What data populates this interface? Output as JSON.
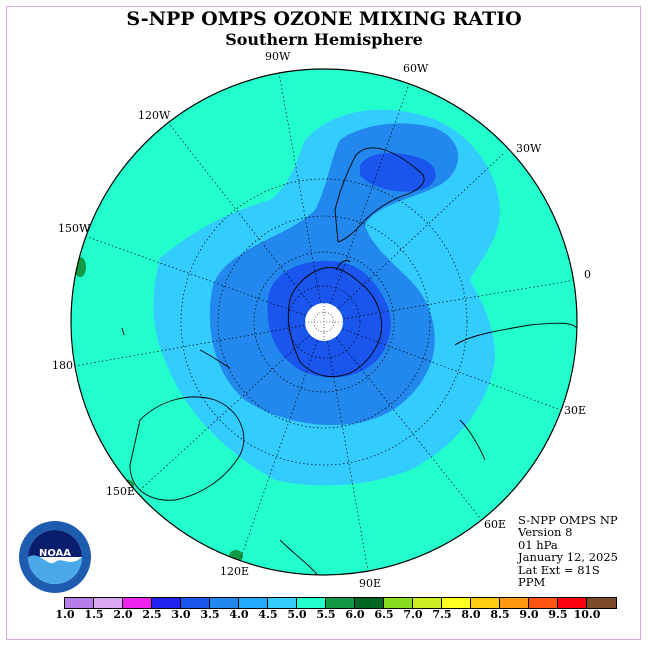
{
  "title": "S-NPP OMPS OZONE MIXING RATIO",
  "subtitle": "Southern Hemisphere",
  "longitude_labels": [
    "90W",
    "60W",
    "120W",
    "30W",
    "150W",
    "0",
    "180",
    "30E",
    "150E",
    "60E",
    "120E",
    "90E"
  ],
  "info": {
    "instrument": "S-NPP OMPS NP",
    "version": "Version 8",
    "level": "01 hPa",
    "date": "January 12, 2025",
    "lat_ext": "Lat Ext = 81S",
    "units": "PPM"
  },
  "logo_text": "NOAA",
  "colorbar": {
    "ticks": [
      "1.0",
      "1.5",
      "2.0",
      "2.5",
      "3.0",
      "3.5",
      "4.0",
      "4.5",
      "5.0",
      "5.5",
      "6.0",
      "6.5",
      "7.0",
      "7.5",
      "8.0",
      "8.5",
      "9.0",
      "9.5",
      "10.0"
    ],
    "colors": [
      "#b57ee8",
      "#d9a8f0",
      "#ee22ee",
      "#2222ee",
      "#1a55ee",
      "#2288ee",
      "#22aaff",
      "#33ccff",
      "#22ffcc",
      "#119944",
      "#006622",
      "#88dd22",
      "#ccee22",
      "#ffff22",
      "#ffcc11",
      "#ff9911",
      "#ff5511",
      "#ff0011",
      "#7a4a2a"
    ]
  },
  "map": {
    "projection": "south-polar-stereographic",
    "background_level_color": "#22ffcc",
    "pole_hole_color": "#ffffff"
  }
}
